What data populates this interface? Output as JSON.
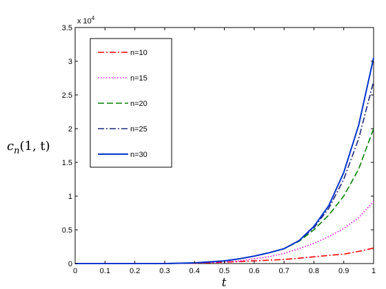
{
  "chart_data": {
    "type": "line",
    "title": "",
    "xlabel": "t",
    "ylabel": "c_n(1,t)",
    "ylabel_parts": {
      "c": "c",
      "n": "n",
      "args": "(1, t)"
    },
    "xlim": [
      0,
      1
    ],
    "ylim": [
      0,
      3.5
    ],
    "y_multiplier_text": {
      "base": "x 10",
      "exp": "4"
    },
    "x_ticks": [
      0,
      0.1,
      0.2,
      0.3,
      0.4,
      0.5,
      0.6,
      0.7,
      0.8,
      0.9,
      1
    ],
    "x_tick_labels": [
      "0",
      "0.1",
      "0.2",
      "0.3",
      "0.4",
      "0.5",
      "0.6",
      "0.7",
      "0.8",
      "0.9",
      "1"
    ],
    "y_ticks": [
      0,
      0.5,
      1,
      1.5,
      2,
      2.5,
      3,
      3.5
    ],
    "y_tick_labels": [
      "0",
      "0.5",
      "1",
      "1.5",
      "2",
      "2.5",
      "3",
      "3.5"
    ],
    "grid": false,
    "legend_position": "top-left",
    "x": [
      0,
      0.1,
      0.2,
      0.3,
      0.4,
      0.5,
      0.55,
      0.6,
      0.65,
      0.7,
      0.75,
      0.8,
      0.85,
      0.9,
      0.95,
      1.0
    ],
    "series": [
      {
        "name": "n=10",
        "color": "#ff0000",
        "dash": "dashdot",
        "values": [
          0,
          0,
          0,
          0,
          0.005,
          0.02,
          0.03,
          0.04,
          0.05,
          0.06,
          0.08,
          0.1,
          0.12,
          0.14,
          0.18,
          0.23
        ]
      },
      {
        "name": "n=15",
        "color": "#ee00ee",
        "dash": "dotted",
        "values": [
          0,
          0,
          0,
          0,
          0.005,
          0.025,
          0.04,
          0.07,
          0.1,
          0.15,
          0.22,
          0.3,
          0.4,
          0.52,
          0.68,
          0.92
        ]
      },
      {
        "name": "n=20",
        "color": "#008000",
        "dash": "dashed",
        "values": [
          0,
          0,
          0,
          0,
          0.01,
          0.04,
          0.07,
          0.11,
          0.16,
          0.22,
          0.33,
          0.5,
          0.72,
          1.0,
          1.4,
          2.0
        ]
      },
      {
        "name": "n=25",
        "color": "#1a237e",
        "dash": "dashdot",
        "values": [
          0,
          0,
          0,
          0,
          0.01,
          0.04,
          0.07,
          0.11,
          0.16,
          0.22,
          0.34,
          0.53,
          0.82,
          1.25,
          1.85,
          2.7
        ]
      },
      {
        "name": "n=30",
        "color": "#0033cc",
        "dash": "solid",
        "values": [
          0,
          0,
          0,
          0,
          0.01,
          0.04,
          0.07,
          0.11,
          0.16,
          0.22,
          0.34,
          0.55,
          0.86,
          1.35,
          2.05,
          3.05
        ]
      }
    ]
  }
}
